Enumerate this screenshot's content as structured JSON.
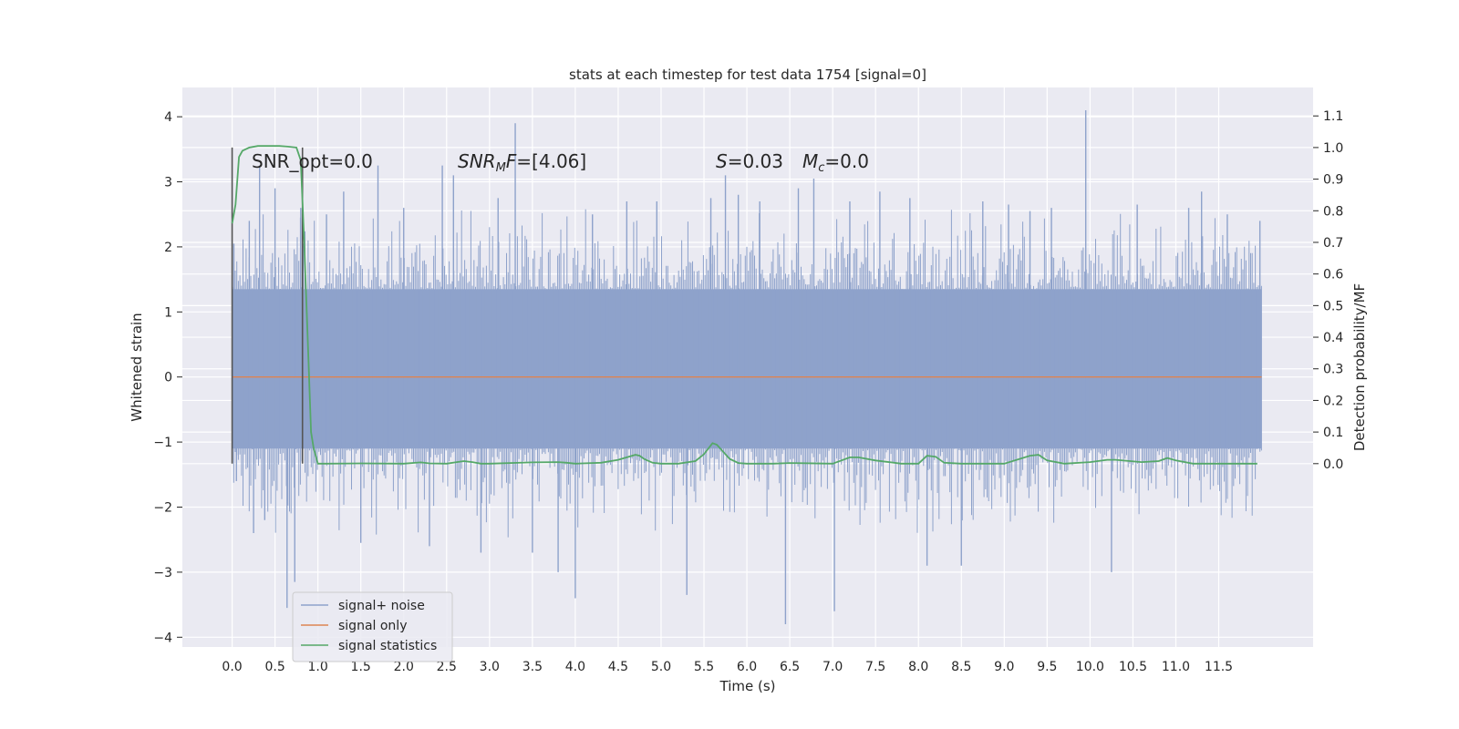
{
  "chart_data": {
    "type": "line",
    "title": "stats at each timestep for test data 1754 [signal=0]",
    "xlabel": "Time (s)",
    "ylabel": "Whitened strain",
    "ylabel_right": "Detection probability/MF",
    "xlim": [
      -0.58,
      12.6
    ],
    "ylim": [
      -4.15,
      4.45
    ],
    "ylim_right": [
      -0.58,
      1.19
    ],
    "grid": true,
    "legend_position": "bottom-left",
    "x_ticks": [
      "0.0",
      "0.5",
      "1.0",
      "1.5",
      "2.0",
      "2.5",
      "3.0",
      "3.5",
      "4.0",
      "4.5",
      "5.0",
      "5.5",
      "6.0",
      "6.5",
      "7.0",
      "7.5",
      "8.0",
      "8.5",
      "9.0",
      "9.5",
      "10.0",
      "10.5",
      "11.0",
      "11.5"
    ],
    "y_ticks": [
      "4",
      "3",
      "2",
      "1",
      "0",
      "−1",
      "−2",
      "−3",
      "−4"
    ],
    "y_ticks_right": [
      "1.1",
      "1.0",
      "0.9",
      "0.8",
      "0.7",
      "0.6",
      "0.5",
      "0.4",
      "0.3",
      "0.2",
      "0.1",
      "0.0"
    ],
    "annotations": {
      "snr_opt": "SNR_opt=0.0",
      "snr_mf_sym": "SNR",
      "snr_mf_sub": "M",
      "snr_mf_sym2": "F",
      "snr_mf_val": "=[4.06]",
      "s_sym": "S",
      "s_val": "=0.03",
      "mc_sym": "M",
      "mc_sub": "c",
      "mc_val": "=0.0"
    },
    "markers": {
      "vlines_x": [
        0.0,
        0.82
      ],
      "vline_color": "#555555"
    },
    "series": [
      {
        "name": "signal+ noise",
        "color": "#8ea2cb",
        "x_range": [
          0.0,
          12.0
        ],
        "band": [
          -1.1,
          1.35
        ],
        "spikes": [
          {
            "x": 0.02,
            "y": 2.05
          },
          {
            "x": 0.05,
            "y": -1.6
          },
          {
            "x": 0.2,
            "y": 2.4
          },
          {
            "x": 0.25,
            "y": -2.4
          },
          {
            "x": 0.32,
            "y": 3.25
          },
          {
            "x": 0.38,
            "y": -2.2
          },
          {
            "x": 0.5,
            "y": 2.9
          },
          {
            "x": 0.64,
            "y": -3.55
          },
          {
            "x": 0.73,
            "y": -3.15
          },
          {
            "x": 0.8,
            "y": 2.6
          },
          {
            "x": 1.1,
            "y": 2.5
          },
          {
            "x": 1.3,
            "y": 2.85
          },
          {
            "x": 1.5,
            "y": -2.55
          },
          {
            "x": 1.7,
            "y": 3.25
          },
          {
            "x": 2.0,
            "y": 2.6
          },
          {
            "x": 2.3,
            "y": -2.6
          },
          {
            "x": 2.45,
            "y": 3.25
          },
          {
            "x": 2.58,
            "y": 3.1
          },
          {
            "x": 2.9,
            "y": -2.7
          },
          {
            "x": 3.1,
            "y": 2.75
          },
          {
            "x": 3.3,
            "y": 3.9
          },
          {
            "x": 3.5,
            "y": -2.7
          },
          {
            "x": 3.8,
            "y": -3.0
          },
          {
            "x": 4.0,
            "y": -3.4
          },
          {
            "x": 4.2,
            "y": 2.5
          },
          {
            "x": 4.6,
            "y": 2.7
          },
          {
            "x": 4.95,
            "y": 2.7
          },
          {
            "x": 5.3,
            "y": -3.35
          },
          {
            "x": 5.58,
            "y": 2.75
          },
          {
            "x": 5.75,
            "y": 3.1
          },
          {
            "x": 5.9,
            "y": 2.8
          },
          {
            "x": 6.15,
            "y": 2.7
          },
          {
            "x": 6.45,
            "y": -3.8
          },
          {
            "x": 6.6,
            "y": 2.9
          },
          {
            "x": 6.78,
            "y": 3.05
          },
          {
            "x": 7.02,
            "y": -3.6
          },
          {
            "x": 7.2,
            "y": 2.7
          },
          {
            "x": 7.55,
            "y": 2.85
          },
          {
            "x": 7.9,
            "y": 2.75
          },
          {
            "x": 8.1,
            "y": -2.9
          },
          {
            "x": 8.5,
            "y": -2.9
          },
          {
            "x": 8.75,
            "y": 2.7
          },
          {
            "x": 9.05,
            "y": 2.65
          },
          {
            "x": 9.3,
            "y": 2.55
          },
          {
            "x": 9.55,
            "y": 2.6
          },
          {
            "x": 9.95,
            "y": 4.1
          },
          {
            "x": 10.25,
            "y": -3.0
          },
          {
            "x": 10.55,
            "y": 2.65
          },
          {
            "x": 11.15,
            "y": 2.6
          },
          {
            "x": 11.3,
            "y": 2.85
          },
          {
            "x": 11.6,
            "y": 2.5
          },
          {
            "x": 11.98,
            "y": 2.4
          }
        ]
      },
      {
        "name": "signal only",
        "color": "#dd8452",
        "x": [
          0.0,
          12.0
        ],
        "y": [
          0.0,
          0.0
        ]
      },
      {
        "name": "signal statistics",
        "color": "#55a868",
        "axis": "right",
        "x": [
          0.0,
          0.04,
          0.08,
          0.12,
          0.2,
          0.3,
          0.4,
          0.55,
          0.65,
          0.75,
          0.8,
          0.84,
          0.88,
          0.92,
          0.95,
          1.0,
          1.1,
          1.5,
          2.0,
          2.2,
          2.3,
          2.5,
          2.7,
          2.8,
          2.9,
          3.0,
          3.5,
          3.8,
          3.9,
          4.0,
          4.3,
          4.5,
          4.7,
          4.75,
          4.8,
          4.9,
          5.0,
          5.2,
          5.4,
          5.5,
          5.6,
          5.65,
          5.7,
          5.8,
          5.9,
          6.0,
          6.3,
          6.5,
          7.0,
          7.2,
          7.3,
          7.5,
          7.8,
          8.0,
          8.1,
          8.2,
          8.3,
          8.5,
          9.0,
          9.3,
          9.4,
          9.5,
          9.7,
          10.0,
          10.2,
          10.3,
          10.6,
          10.8,
          10.9,
          11.0,
          11.2,
          11.5,
          11.95
        ],
        "y": [
          0.76,
          0.82,
          0.97,
          0.99,
          1.0,
          1.005,
          1.005,
          1.005,
          1.003,
          1.0,
          0.96,
          0.7,
          0.4,
          0.1,
          0.05,
          0.0,
          0.0,
          0.001,
          0.0,
          0.004,
          0.001,
          0.0,
          0.008,
          0.005,
          0.0,
          0.0,
          0.004,
          0.005,
          0.003,
          0.0,
          0.003,
          0.012,
          0.028,
          0.025,
          0.015,
          0.003,
          0.0,
          0.0,
          0.008,
          0.03,
          0.065,
          0.06,
          0.045,
          0.015,
          0.002,
          0.0,
          0.0,
          0.002,
          0.0,
          0.02,
          0.02,
          0.01,
          0.0,
          0.0,
          0.025,
          0.022,
          0.003,
          0.0,
          0.0,
          0.025,
          0.028,
          0.01,
          0.0,
          0.005,
          0.012,
          0.012,
          0.005,
          0.008,
          0.018,
          0.01,
          0.0,
          0.0,
          0.0
        ]
      }
    ]
  }
}
